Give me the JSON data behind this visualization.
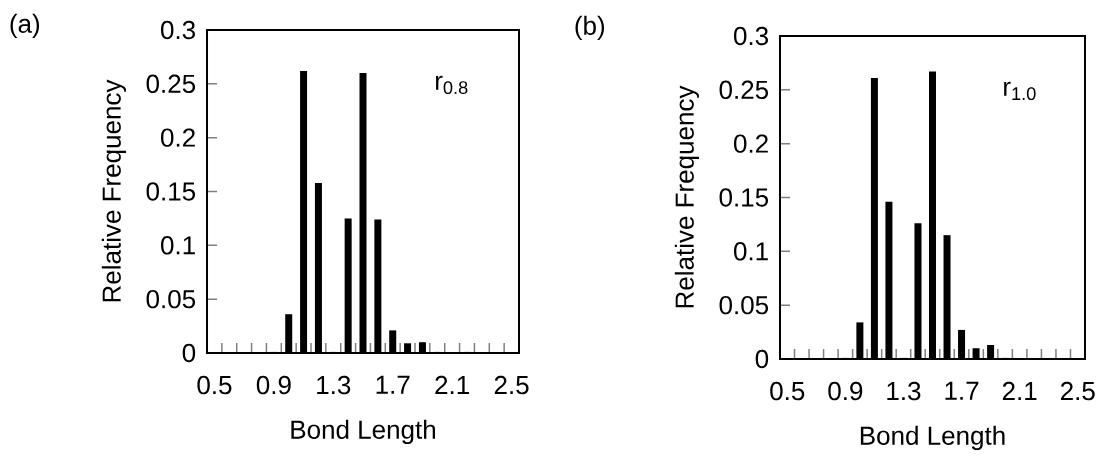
{
  "chart_data": [
    {
      "type": "bar",
      "title": "(a)",
      "xlabel": "Bond Length",
      "ylabel": "Relative Frequency",
      "categories": [
        "0.5",
        null,
        null,
        null,
        "0.9",
        null,
        null,
        null,
        "1.3",
        null,
        null,
        null,
        "1.7",
        null,
        null,
        null,
        "2.1",
        null,
        null,
        null,
        "2.5"
      ],
      "values": [
        0,
        0,
        0,
        0,
        0.001,
        0.036,
        0.262,
        0.158,
        0.001,
        0.125,
        0.26,
        0.124,
        0.021,
        0.009,
        0.01,
        0.001,
        0,
        0.001,
        0,
        0,
        0
      ],
      "color": "#000000",
      "ylim": [
        0,
        0.3
      ],
      "yticks": [
        0,
        0.05,
        0.1,
        0.15,
        0.2,
        0.25,
        0.3
      ],
      "annotations": [
        "r$_{0.8}$"
      ]
    },
    {
      "type": "bar",
      "title": "(b)",
      "xlabel": "Bond Length",
      "ylabel": "Relative Frequency",
      "categories": [
        "0.5",
        null,
        null,
        null,
        "0.9",
        null,
        null,
        null,
        "1.3",
        null,
        null,
        null,
        "1.7",
        null,
        null,
        null,
        "2.1",
        null,
        null,
        null,
        "2.5"
      ],
      "values": [
        0,
        0,
        0,
        0,
        0.001,
        0.034,
        0.261,
        0.146,
        0.001,
        0.126,
        0.267,
        0.115,
        0.027,
        0.01,
        0.013,
        0.001,
        0,
        0,
        0,
        0,
        0
      ],
      "color": "#000000",
      "ylim": [
        0,
        0.3
      ],
      "yticks": [
        0,
        0.05,
        0.1,
        0.15,
        0.2,
        0.25,
        0.3
      ],
      "annotations": [
        "r$_{1.0}$"
      ]
    }
  ]
}
